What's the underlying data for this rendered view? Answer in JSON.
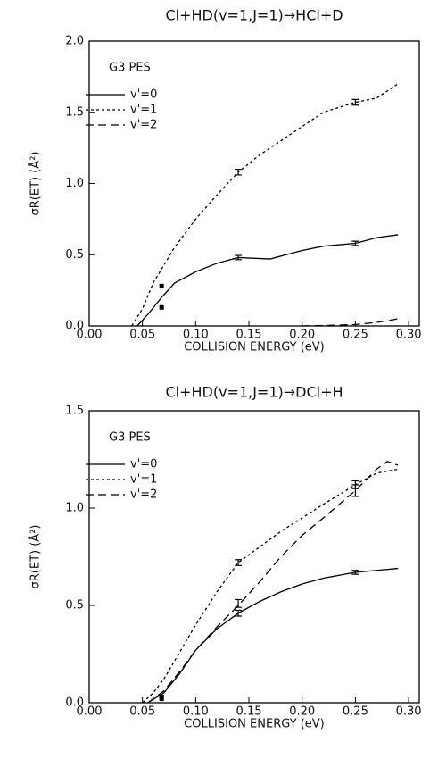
{
  "chart_data": [
    {
      "type": "line",
      "title": "Cl+HD(v=1,J=1)→HCl+D",
      "annotation": "G3 PES",
      "xlabel": "COLLISION ENERGY (eV)",
      "ylabel": "σR(ET) (Å²)",
      "xlim": [
        0,
        0.31
      ],
      "ylim": [
        0,
        2.0
      ],
      "xticks": [
        {
          "value": 0,
          "label": "0.00"
        },
        {
          "value": 0.05,
          "label": "0.05"
        },
        {
          "value": 0.1,
          "label": "0.10"
        },
        {
          "value": 0.15,
          "label": "0.15"
        },
        {
          "value": 0.2,
          "label": "0.20"
        },
        {
          "value": 0.25,
          "label": "0.25"
        },
        {
          "value": 0.3,
          "label": "0.30"
        }
      ],
      "yticks": [
        {
          "value": 0,
          "label": "0.0"
        },
        {
          "value": 0.5,
          "label": "0.5"
        },
        {
          "value": 1.0,
          "label": "1.0"
        },
        {
          "value": 1.5,
          "label": "1.5"
        },
        {
          "value": 2.0,
          "label": "2.0"
        }
      ],
      "legend": "upper left",
      "series": [
        {
          "name": "v'=0",
          "color": "#000000",
          "dash": "solid",
          "x": [
            0.045,
            0.055,
            0.068,
            0.08,
            0.1,
            0.12,
            0.14,
            0.17,
            0.2,
            0.22,
            0.25,
            0.27,
            0.29
          ],
          "values": [
            0,
            0.08,
            0.2,
            0.3,
            0.38,
            0.44,
            0.48,
            0.47,
            0.53,
            0.56,
            0.58,
            0.62,
            0.64
          ]
        },
        {
          "name": "v'=1",
          "color": "#000000",
          "dash": "dot",
          "x": [
            0.04,
            0.05,
            0.06,
            0.08,
            0.1,
            0.12,
            0.14,
            0.16,
            0.18,
            0.2,
            0.22,
            0.25,
            0.27,
            0.29
          ],
          "values": [
            0,
            0.12,
            0.3,
            0.55,
            0.75,
            0.92,
            1.08,
            1.2,
            1.3,
            1.4,
            1.5,
            1.57,
            1.6,
            1.7
          ]
        },
        {
          "name": "v'=2",
          "color": "#000000",
          "dash": "dash",
          "x": [
            0.2,
            0.23,
            0.25,
            0.27,
            0.29
          ],
          "values": [
            0,
            0.005,
            0.01,
            0.025,
            0.05
          ]
        }
      ],
      "points": {
        "x": [
          0.068,
          0.068
        ],
        "values": [
          0.28,
          0.13
        ]
      },
      "error_bars": {
        "x": [
          0.14,
          0.14,
          0.25,
          0.25
        ],
        "values": [
          0.48,
          1.08,
          0.58,
          1.57
        ],
        "errors": [
          0.015,
          0.02,
          0.015,
          0.02
        ]
      }
    },
    {
      "type": "line",
      "title": "Cl+HD(v=1,J=1)→DCl+H",
      "annotation": "G3 PES",
      "xlabel": "COLLISION ENERGY (eV)",
      "ylabel": "σR(ET) (Å²)",
      "xlim": [
        0,
        0.31
      ],
      "ylim": [
        0,
        1.5
      ],
      "xticks": [
        {
          "value": 0,
          "label": "0.00"
        },
        {
          "value": 0.05,
          "label": "0.05"
        },
        {
          "value": 0.1,
          "label": "0.10"
        },
        {
          "value": 0.15,
          "label": "0.15"
        },
        {
          "value": 0.2,
          "label": "0.20"
        },
        {
          "value": 0.25,
          "label": "0.25"
        },
        {
          "value": 0.3,
          "label": "0.30"
        }
      ],
      "yticks": [
        {
          "value": 0,
          "label": "0.0"
        },
        {
          "value": 0.5,
          "label": "0.5"
        },
        {
          "value": 1.0,
          "label": "1.0"
        },
        {
          "value": 1.5,
          "label": "1.5"
        }
      ],
      "legend": "upper left",
      "series": [
        {
          "name": "v'=0",
          "color": "#000000",
          "dash": "solid",
          "x": [
            0.055,
            0.07,
            0.085,
            0.1,
            0.12,
            0.14,
            0.16,
            0.18,
            0.2,
            0.22,
            0.25,
            0.27,
            0.29
          ],
          "values": [
            0,
            0.05,
            0.15,
            0.27,
            0.38,
            0.46,
            0.52,
            0.57,
            0.61,
            0.64,
            0.67,
            0.68,
            0.69
          ]
        },
        {
          "name": "v'=1",
          "color": "#000000",
          "dash": "dot",
          "x": [
            0.05,
            0.06,
            0.07,
            0.085,
            0.1,
            0.12,
            0.14,
            0.16,
            0.18,
            0.2,
            0.22,
            0.25,
            0.27,
            0.29
          ],
          "values": [
            0,
            0.05,
            0.12,
            0.26,
            0.4,
            0.57,
            0.72,
            0.8,
            0.88,
            0.95,
            1.02,
            1.12,
            1.18,
            1.2
          ]
        },
        {
          "name": "v'=2",
          "color": "#000000",
          "dash": "dash",
          "x": [
            0.055,
            0.07,
            0.085,
            0.1,
            0.12,
            0.14,
            0.16,
            0.18,
            0.2,
            0.22,
            0.25,
            0.27,
            0.28,
            0.29
          ],
          "values": [
            0,
            0.06,
            0.16,
            0.27,
            0.39,
            0.5,
            0.62,
            0.75,
            0.86,
            0.95,
            1.09,
            1.2,
            1.24,
            1.22
          ]
        }
      ],
      "points": {
        "x": [
          0.068,
          0.068
        ],
        "values": [
          0.03,
          0.02
        ]
      },
      "error_bars": {
        "x": [
          0.14,
          0.14,
          0.14,
          0.25,
          0.25,
          0.25
        ],
        "values": [
          0.46,
          0.51,
          0.72,
          0.67,
          1.09,
          1.12
        ],
        "errors": [
          0.015,
          0.02,
          0.015,
          0.01,
          0.03,
          0.02
        ]
      }
    }
  ]
}
